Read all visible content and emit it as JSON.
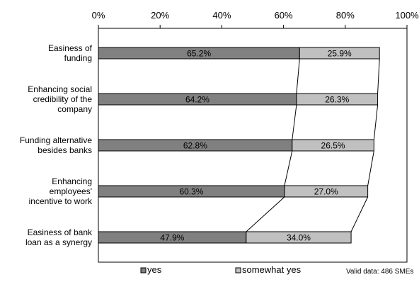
{
  "chart_data": {
    "type": "bar",
    "orientation": "horizontal",
    "stacked": true,
    "xlim": [
      0,
      100
    ],
    "x_ticks": [
      "0%",
      "20%",
      "40%",
      "60%",
      "80%",
      "100%"
    ],
    "x_tick_values": [
      0,
      20,
      40,
      60,
      80,
      100
    ],
    "categories": [
      [
        "Easiness of",
        "funding"
      ],
      [
        "Enhancing social",
        "credibility of the",
        "company"
      ],
      [
        "Funding alternative",
        "besides banks"
      ],
      [
        "Enhancing",
        "employees'",
        "incentive to work"
      ],
      [
        "Easiness of bank",
        "loan as a synergy"
      ]
    ],
    "series": [
      {
        "name": "yes",
        "color": "#808080",
        "values": [
          65.2,
          64.2,
          62.8,
          60.3,
          47.9
        ],
        "labels": [
          "65.2%",
          "64.2%",
          "62.8%",
          "60.3%",
          "47.9%"
        ]
      },
      {
        "name": "somewhat yes",
        "color": "#c0c0c0",
        "values": [
          25.9,
          26.3,
          26.5,
          27.0,
          34.0
        ],
        "labels": [
          "25.9%",
          "26.3%",
          "26.5%",
          "27.0%",
          "34.0%"
        ]
      }
    ],
    "series_connector_lines": true,
    "grid": false,
    "legend_position": "bottom",
    "note": "Valid data: 486 SMEs"
  }
}
